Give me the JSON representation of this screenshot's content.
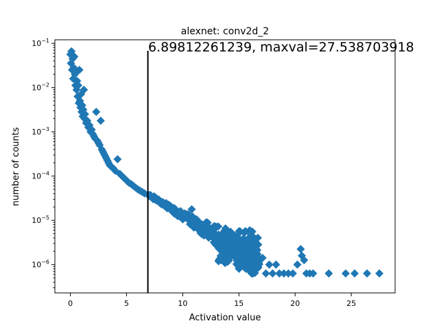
{
  "chart_data": {
    "type": "scatter",
    "title": "alexnet: conv2d_2",
    "xlabel": "Activation value",
    "ylabel": "number of counts",
    "annotation": "6.89812261239, maxval=27.538703918",
    "threshold_x": 6.89812261239,
    "xlim": [
      -1.38,
      28.9
    ],
    "ylim_log": [
      -6.64,
      -0.92
    ],
    "y_scale": "log",
    "x_ticks": [
      0,
      5,
      10,
      15,
      20,
      25
    ],
    "x_tick_labels": [
      "0",
      "5",
      "10",
      "15",
      "20",
      "25"
    ],
    "y_ticks_exp": [
      -6,
      -5,
      -4,
      -3,
      -2,
      -1
    ],
    "marker": "diamond",
    "color": "#1f77b4",
    "points": [
      [
        0.0,
        -1.25
      ],
      [
        0.05,
        -1.45
      ],
      [
        0.1,
        -1.18
      ],
      [
        0.15,
        -1.6
      ],
      [
        0.2,
        -1.35
      ],
      [
        0.25,
        -1.8
      ],
      [
        0.3,
        -1.55
      ],
      [
        0.35,
        -1.3
      ],
      [
        0.4,
        -1.7
      ],
      [
        0.45,
        -1.95
      ],
      [
        0.5,
        -1.65
      ],
      [
        0.55,
        -2.05
      ],
      [
        0.6,
        -1.85
      ],
      [
        0.65,
        -2.2
      ],
      [
        0.7,
        -1.95
      ],
      [
        0.75,
        -2.35
      ],
      [
        0.8,
        -1.6
      ],
      [
        0.85,
        -2.3
      ],
      [
        0.9,
        -2.45
      ],
      [
        0.95,
        -2.15
      ],
      [
        1.0,
        -2.55
      ],
      [
        1.05,
        -2.4
      ],
      [
        1.1,
        -2.65
      ],
      [
        1.15,
        -2.5
      ],
      [
        1.2,
        -2.05
      ],
      [
        1.25,
        -2.7
      ],
      [
        1.3,
        -2.6
      ],
      [
        1.4,
        -2.8
      ],
      [
        1.5,
        -2.75
      ],
      [
        1.6,
        -2.9
      ],
      [
        1.7,
        -2.85
      ],
      [
        1.8,
        -3.0
      ],
      [
        1.9,
        -2.95
      ],
      [
        2.0,
        -3.05
      ],
      [
        2.1,
        -3.1
      ],
      [
        2.2,
        -3.15
      ],
      [
        2.3,
        -2.55
      ],
      [
        2.4,
        -3.2
      ],
      [
        2.5,
        -3.25
      ],
      [
        2.6,
        -3.3
      ],
      [
        2.7,
        -2.75
      ],
      [
        2.8,
        -3.4
      ],
      [
        2.9,
        -3.45
      ],
      [
        3.0,
        -3.5
      ],
      [
        3.1,
        -3.55
      ],
      [
        3.2,
        -3.6
      ],
      [
        3.3,
        -3.65
      ],
      [
        3.4,
        -3.7
      ],
      [
        3.5,
        -3.75
      ],
      [
        3.6,
        -3.78
      ],
      [
        3.8,
        -3.82
      ],
      [
        4.0,
        -3.88
      ],
      [
        4.2,
        -3.62
      ],
      [
        4.4,
        -3.95
      ],
      [
        4.6,
        -4.0
      ],
      [
        4.8,
        -4.05
      ],
      [
        5.0,
        -4.1
      ],
      [
        5.2,
        -4.15
      ],
      [
        5.4,
        -4.18
      ],
      [
        5.6,
        -4.22
      ],
      [
        5.8,
        -4.26
      ],
      [
        6.0,
        -4.3
      ],
      [
        6.2,
        -4.33
      ],
      [
        6.4,
        -4.36
      ],
      [
        6.6,
        -4.39
      ],
      [
        6.9,
        -4.42
      ],
      [
        7.2,
        -4.46
      ],
      [
        7.5,
        -4.5
      ],
      [
        7.8,
        -4.55
      ],
      [
        8.1,
        -4.6
      ],
      [
        8.4,
        -4.64
      ],
      [
        8.7,
        -4.68
      ],
      [
        9.0,
        -4.72
      ],
      [
        9.3,
        -4.77
      ],
      [
        9.6,
        -4.82
      ],
      [
        9.9,
        -4.86
      ],
      [
        10.2,
        -4.9
      ],
      [
        10.5,
        -4.95
      ],
      [
        10.8,
        -4.75
      ],
      [
        11.1,
        -5.0
      ],
      [
        11.4,
        -5.05
      ],
      [
        11.7,
        -5.1
      ],
      [
        12.0,
        -5.15
      ],
      [
        12.3,
        -5.2
      ],
      [
        12.6,
        -5.25
      ],
      [
        12.9,
        -5.3
      ],
      [
        13.2,
        -5.35
      ],
      [
        13.5,
        -5.4
      ],
      [
        13.8,
        -5.45
      ],
      [
        14.1,
        -5.5
      ],
      [
        14.4,
        -5.55
      ],
      [
        14.7,
        -5.6
      ],
      [
        15.0,
        -5.65
      ],
      [
        15.3,
        -5.7
      ],
      [
        15.6,
        -5.6
      ],
      [
        15.9,
        -5.75
      ],
      [
        16.2,
        -5.7
      ],
      [
        16.5,
        -5.8
      ],
      [
        16.8,
        -6.0
      ],
      [
        17.1,
        -5.85
      ],
      [
        17.4,
        -6.2
      ],
      [
        17.7,
        -6.0
      ],
      [
        18.0,
        -6.2
      ],
      [
        18.3,
        -6.0
      ],
      [
        18.6,
        -6.2
      ],
      [
        19.0,
        -6.2
      ],
      [
        19.4,
        -6.2
      ],
      [
        19.8,
        -6.2
      ],
      [
        20.2,
        -6.0
      ],
      [
        20.5,
        -5.65
      ],
      [
        20.6,
        -5.8
      ],
      [
        20.8,
        -5.9
      ],
      [
        21.0,
        -6.2
      ],
      [
        21.3,
        -6.2
      ],
      [
        21.6,
        -6.2
      ],
      [
        23.0,
        -6.2
      ],
      [
        24.5,
        -6.2
      ],
      [
        25.3,
        -6.2
      ],
      [
        26.4,
        -6.2
      ],
      [
        27.5,
        -6.2
      ]
    ],
    "band": {
      "from_x": 7.0,
      "to_x": 16.5,
      "step": 0.12,
      "spread": [
        [
          7.0,
          0.03
        ],
        [
          9.0,
          0.06
        ],
        [
          11.0,
          0.12
        ],
        [
          13.0,
          0.25
        ],
        [
          14.5,
          0.35
        ],
        [
          16.5,
          0.4
        ]
      ],
      "dense_x": [
        [
          13.0,
          15.9,
          -6.0,
          -5.4
        ],
        [
          14.5,
          16.8,
          -6.0,
          -5.2
        ],
        [
          15.0,
          16.8,
          -5.9,
          -5.5
        ],
        [
          14.8,
          16.8,
          -6.1,
          -5.8
        ]
      ]
    }
  }
}
